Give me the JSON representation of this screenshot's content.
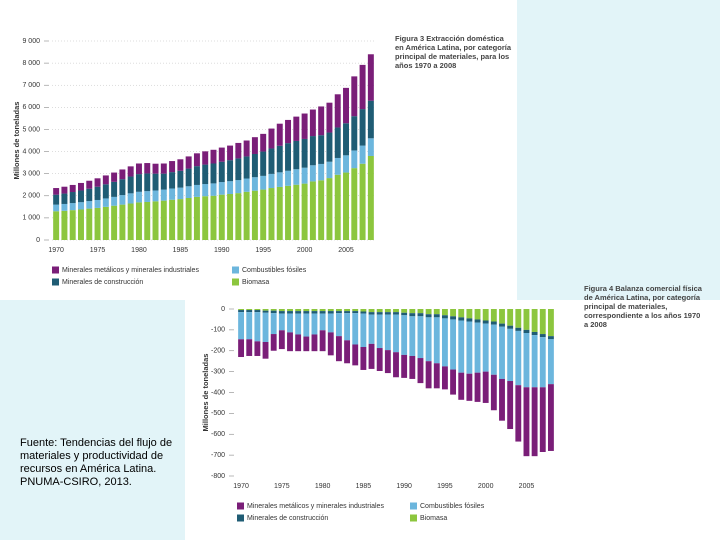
{
  "source": "Fuente: Tendencias del flujo de materiales y productividad de recursos en América Latina. PNUMA-CSIRO, 2013.",
  "chart_data": [
    {
      "type": "bar",
      "stacked": true,
      "title": "Figura 3 Extracción doméstica en América Latina, por categoría principal de materiales, para los años 1970 a 2008",
      "y_label": "Millones de toneladas",
      "x": [
        1970,
        1971,
        1972,
        1973,
        1974,
        1975,
        1976,
        1977,
        1978,
        1979,
        1980,
        1981,
        1982,
        1983,
        1984,
        1985,
        1986,
        1987,
        1988,
        1989,
        1990,
        1991,
        1992,
        1993,
        1994,
        1995,
        1996,
        1997,
        1998,
        1999,
        2000,
        2001,
        2002,
        2003,
        2004,
        2005,
        2006,
        2007,
        2008
      ],
      "xticks": [
        1970,
        1975,
        1980,
        1985,
        1990,
        1995,
        2000,
        2005
      ],
      "ylim": [
        0,
        9000
      ],
      "yticks": [
        0,
        {
          "value": 1000,
          "label": "1 000"
        },
        {
          "value": 2000,
          "label": "2 000"
        },
        {
          "value": 3000,
          "label": "3 000"
        },
        {
          "value": 4000,
          "label": "4 000"
        },
        {
          "value": 5000,
          "label": "5 000"
        },
        {
          "value": 6000,
          "label": "6 000"
        },
        {
          "value": 7000,
          "label": "7 000"
        },
        {
          "value": 8000,
          "label": "8 000"
        },
        {
          "value": 9000,
          "label": "9 000"
        }
      ],
      "grid": true,
      "series": [
        {
          "name": "Biomasa",
          "color": "#8cc63e",
          "values": [
            1300,
            1320,
            1350,
            1380,
            1420,
            1450,
            1500,
            1550,
            1600,
            1650,
            1700,
            1720,
            1750,
            1780,
            1820,
            1850,
            1900,
            1950,
            1980,
            2000,
            2050,
            2080,
            2120,
            2180,
            2230,
            2280,
            2350,
            2400,
            2450,
            2500,
            2550,
            2650,
            2700,
            2800,
            2950,
            3050,
            3250,
            3450,
            3800
          ]
        },
        {
          "name": "Combustibles fósiles",
          "color": "#6cb6dd",
          "values": [
            300,
            310,
            320,
            330,
            340,
            360,
            380,
            400,
            430,
            460,
            480,
            490,
            490,
            500,
            510,
            520,
            530,
            540,
            550,
            560,
            570,
            580,
            590,
            600,
            610,
            620,
            640,
            660,
            680,
            700,
            720,
            730,
            740,
            740,
            760,
            780,
            800,
            820,
            800
          ]
        },
        {
          "name": "Minerales de construcción",
          "color": "#1f5c74",
          "values": [
            450,
            470,
            500,
            530,
            560,
            600,
            640,
            680,
            720,
            760,
            800,
            800,
            760,
            720,
            740,
            760,
            800,
            850,
            880,
            900,
            920,
            950,
            980,
            1000,
            1050,
            1100,
            1150,
            1200,
            1250,
            1280,
            1300,
            1320,
            1300,
            1320,
            1380,
            1450,
            1550,
            1650,
            1700
          ]
        },
        {
          "name": "Minerales metálicos y minerales industriales",
          "color": "#7a1e78",
          "values": [
            300,
            310,
            320,
            340,
            360,
            380,
            400,
            420,
            440,
            460,
            480,
            470,
            450,
            460,
            500,
            520,
            550,
            580,
            600,
            620,
            640,
            660,
            700,
            720,
            760,
            800,
            900,
            1000,
            1050,
            1100,
            1150,
            1200,
            1300,
            1350,
            1500,
            1600,
            1800,
            2000,
            2100
          ]
        }
      ]
    },
    {
      "type": "bar",
      "stacked": true,
      "title": "Figura 4 Balanza comercial física de América Latina, por categoría principal de materiales, correspondiente a los años 1970 a 2008",
      "y_label": "Millones de toneladas",
      "x": [
        1970,
        1971,
        1972,
        1973,
        1974,
        1975,
        1976,
        1977,
        1978,
        1979,
        1980,
        1981,
        1982,
        1983,
        1984,
        1985,
        1986,
        1987,
        1988,
        1989,
        1990,
        1991,
        1992,
        1993,
        1994,
        1995,
        1996,
        1997,
        1998,
        1999,
        2000,
        2001,
        2002,
        2003,
        2004,
        2005,
        2006,
        2007,
        2008
      ],
      "xticks": [
        1970,
        1975,
        1980,
        1985,
        1990,
        1995,
        2000,
        2005
      ],
      "ylim": [
        -800,
        0
      ],
      "yticks": [
        0,
        -100,
        -200,
        -300,
        -400,
        -500,
        -600,
        -700,
        -800
      ],
      "grid": false,
      "series": [
        {
          "name": "Biomasa",
          "color": "#8cc63e",
          "values": [
            -5,
            -5,
            -5,
            -8,
            -8,
            -10,
            -10,
            -10,
            -10,
            -10,
            -10,
            -10,
            -10,
            -10,
            -10,
            -12,
            -15,
            -15,
            -15,
            -15,
            -18,
            -20,
            -20,
            -25,
            -25,
            -30,
            -35,
            -40,
            -45,
            -50,
            -55,
            -60,
            -70,
            -80,
            -90,
            -100,
            -110,
            -120,
            -130
          ]
        },
        {
          "name": "Minerales de construcción",
          "color": "#1f5c74",
          "values": [
            -10,
            -10,
            -10,
            -10,
            -12,
            -12,
            -12,
            -12,
            -12,
            -12,
            -12,
            -12,
            -10,
            -10,
            -10,
            -10,
            -12,
            -12,
            -12,
            -12,
            -12,
            -15,
            -15,
            -15,
            -15,
            -15,
            -15,
            -15,
            -15,
            -15,
            -15,
            -15,
            -15,
            -15,
            -15,
            -15,
            -15,
            -15,
            -15
          ]
        },
        {
          "name": "Combustibles fósiles",
          "color": "#6cb6dd",
          "values": [
            -130,
            -130,
            -140,
            -140,
            -100,
            -80,
            -90,
            -100,
            -110,
            -100,
            -80,
            -90,
            -110,
            -130,
            -150,
            -160,
            -140,
            -160,
            -170,
            -180,
            -190,
            -190,
            -200,
            -210,
            -220,
            -230,
            -240,
            -250,
            -250,
            -240,
            -230,
            -240,
            -250,
            -250,
            -260,
            -260,
            -250,
            -240,
            -215
          ]
        },
        {
          "name": "Minerales metálicos y minerales industriales",
          "color": "#7a1e78",
          "values": [
            -85,
            -80,
            -70,
            -80,
            -80,
            -90,
            -90,
            -80,
            -70,
            -80,
            -100,
            -110,
            -120,
            -110,
            -100,
            -110,
            -120,
            -110,
            -110,
            -120,
            -110,
            -110,
            -120,
            -130,
            -120,
            -110,
            -120,
            -130,
            -130,
            -140,
            -150,
            -170,
            -200,
            -230,
            -270,
            -330,
            -330,
            -310,
            -320
          ]
        }
      ]
    }
  ]
}
